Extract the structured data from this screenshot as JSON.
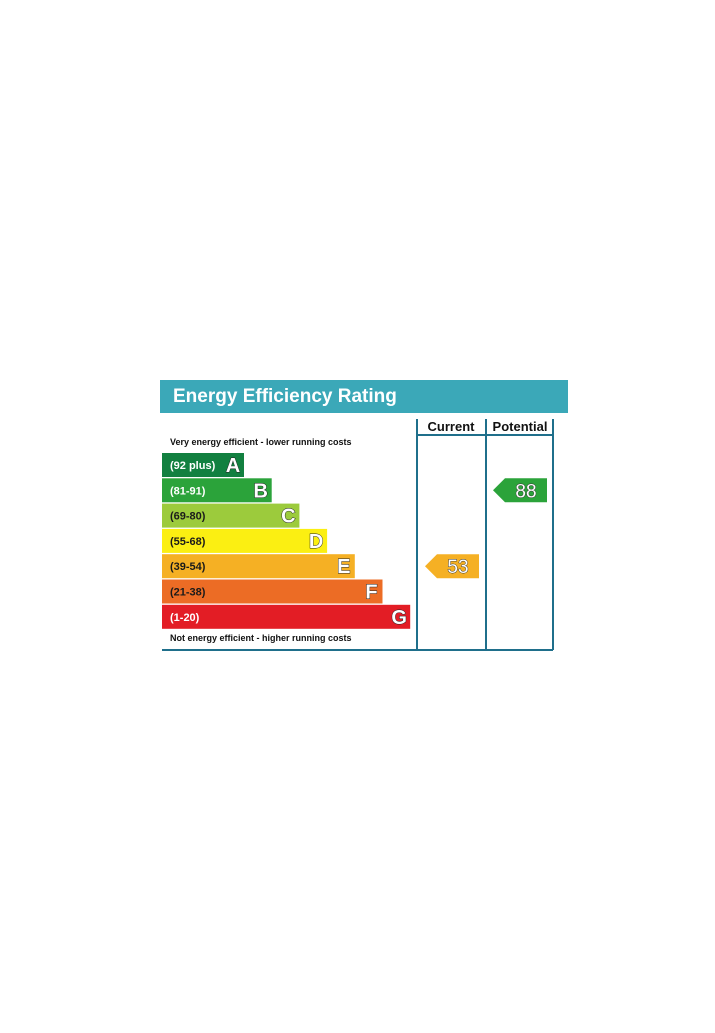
{
  "chart_data": {
    "type": "bar",
    "title": "Energy Efficiency Rating",
    "columns": [
      "Current",
      "Potential"
    ],
    "top_note": "Very energy efficient - lower running costs",
    "bottom_note": "Not energy efficient - higher running costs",
    "bands": [
      {
        "letter": "A",
        "range": "(92 plus)",
        "color": "#128040"
      },
      {
        "letter": "B",
        "range": "(81-91)",
        "color": "#2ba33a"
      },
      {
        "letter": "C",
        "range": "(69-80)",
        "color": "#9ccb3c"
      },
      {
        "letter": "D",
        "range": "(55-68)",
        "color": "#fbef12"
      },
      {
        "letter": "E",
        "range": "(39-54)",
        "color": "#f5b024"
      },
      {
        "letter": "F",
        "range": "(21-38)",
        "color": "#ec6c25"
      },
      {
        "letter": "G",
        "range": "(1-20)",
        "color": "#e31d25"
      }
    ],
    "current": {
      "value": 53,
      "band": "E",
      "color": "#f5b024"
    },
    "potential": {
      "value": 88,
      "band": "B",
      "color": "#2ba33a"
    }
  },
  "colors": {
    "header_bg": "#3ba8b8",
    "frame": "#1f6f8b"
  }
}
